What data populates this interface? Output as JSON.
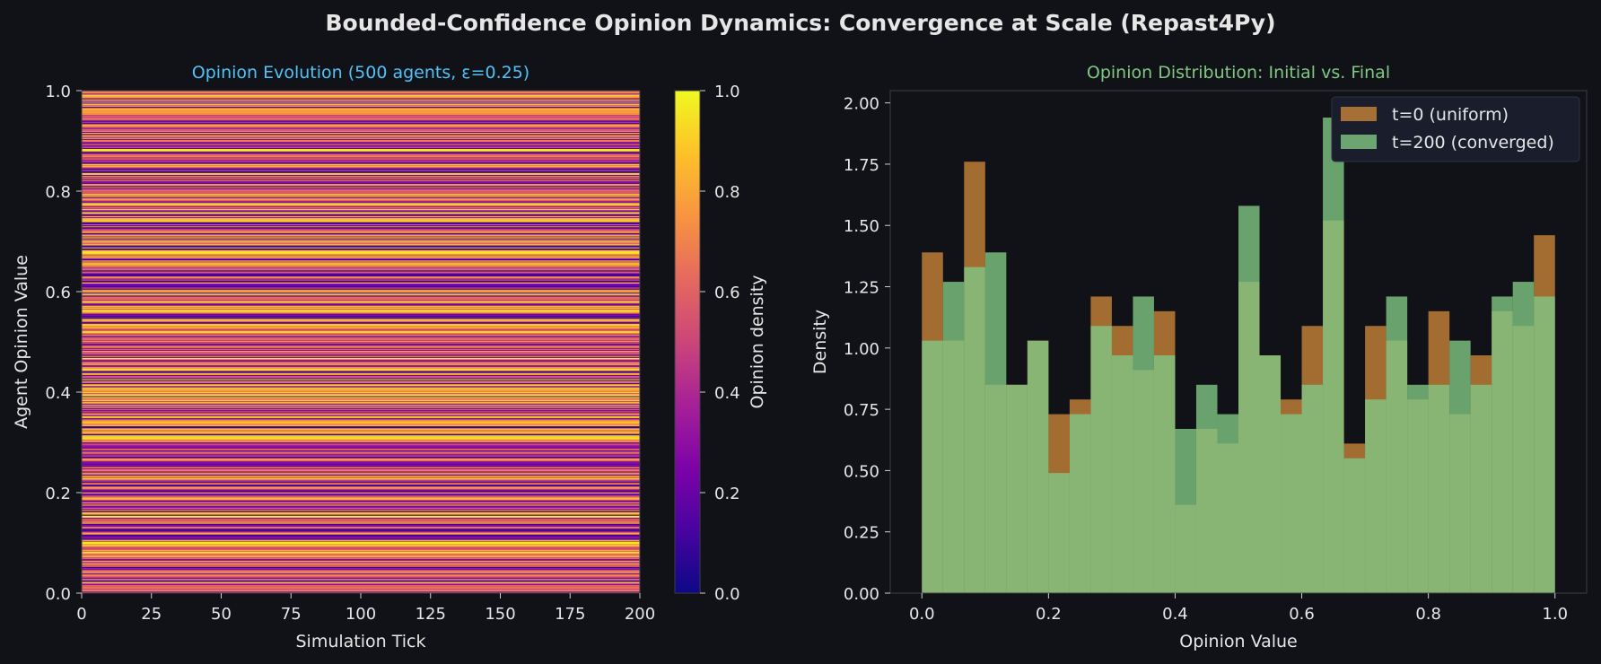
{
  "figure": {
    "title": "Bounded-Confidence Opinion Dynamics: Convergence at Scale (Repast4Py)",
    "background": "#111217"
  },
  "chart_data": [
    {
      "type": "heatmap",
      "title": "Opinion Evolution (500 agents, ε=0.25)",
      "title_color": "#4fc3f7",
      "xlabel": "Simulation Tick",
      "ylabel": "Agent Opinion Value",
      "xlim": [
        0,
        200
      ],
      "ylim": [
        0,
        1
      ],
      "xticks": [
        0,
        25,
        50,
        75,
        100,
        125,
        150,
        175,
        200
      ],
      "yticks": [
        0.0,
        0.2,
        0.4,
        0.6,
        0.8,
        1.0
      ],
      "colormap": "plasma",
      "colorbar": {
        "label": "Opinion density",
        "range": [
          0,
          1
        ],
        "ticks": [
          0.0,
          0.2,
          0.4,
          0.6,
          0.8,
          1.0
        ]
      },
      "bins": 500,
      "note_values": "density varies only along y (constant over ticks); values estimated as horizontal stripes"
    },
    {
      "type": "bar",
      "title": "Opinion Distribution: Initial vs. Final",
      "title_color": "#81c784",
      "xlabel": "Opinion Value",
      "ylabel": "Density",
      "xlim": [
        -0.05,
        1.05
      ],
      "ylim": [
        0,
        2.05
      ],
      "xticks": [
        0.0,
        0.2,
        0.4,
        0.6,
        0.8,
        1.0
      ],
      "yticks": [
        0.0,
        0.25,
        0.5,
        0.75,
        1.0,
        1.25,
        1.5,
        1.75,
        2.0
      ],
      "bin_edges_start": 0.0,
      "bin_edges_end": 1.0,
      "bin_count": 30,
      "legend_position": "top-right",
      "series": [
        {
          "name": "t=0 (uniform)",
          "color": "#c8843a",
          "values": [
            1.39,
            1.03,
            1.76,
            0.85,
            0.85,
            1.03,
            0.73,
            0.79,
            1.21,
            1.09,
            0.91,
            1.15,
            0.36,
            0.67,
            0.61,
            1.27,
            0.97,
            0.79,
            1.09,
            1.52,
            0.61,
            1.09,
            1.03,
            0.79,
            1.15,
            0.73,
            0.97,
            1.15,
            1.09,
            1.46
          ]
        },
        {
          "name": "t=200 (converged)",
          "color": "#81c784",
          "values": [
            1.03,
            1.27,
            1.33,
            1.39,
            0.85,
            1.03,
            0.49,
            0.73,
            1.09,
            0.97,
            1.21,
            0.97,
            0.67,
            0.85,
            0.73,
            1.58,
            0.97,
            0.73,
            0.85,
            1.94,
            0.55,
            0.79,
            1.21,
            0.85,
            0.85,
            1.03,
            0.85,
            1.21,
            1.27,
            1.21
          ]
        }
      ]
    }
  ]
}
